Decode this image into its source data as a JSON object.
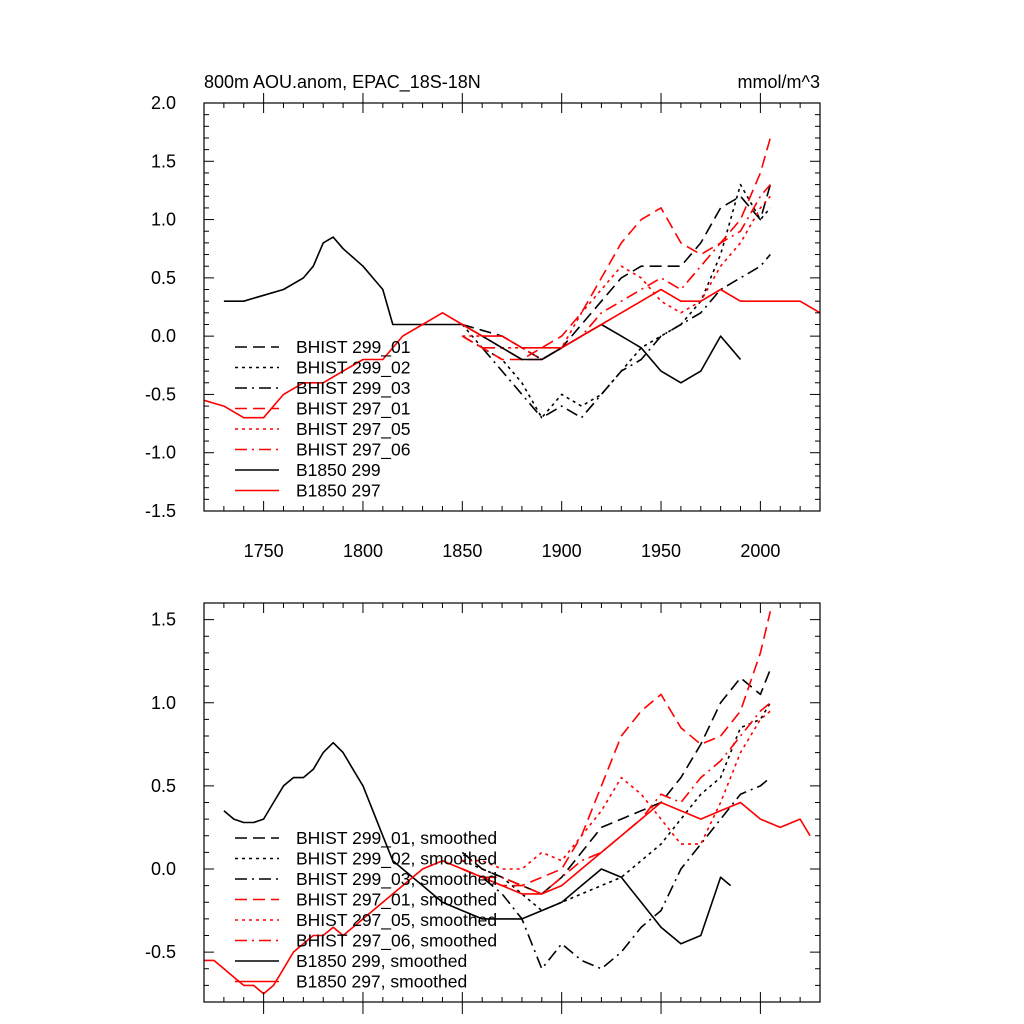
{
  "chart_data": [
    {
      "type": "line",
      "title": "800m AOU.anom, EPAC_18S-18N",
      "units": "mmol/m^3",
      "xlim": [
        1720,
        2030
      ],
      "ylim": [
        -1.5,
        2.0
      ],
      "xticks": [
        1750,
        1800,
        1850,
        1900,
        1950,
        2000
      ],
      "xtick_labels": [
        "1750",
        "1800",
        "1850",
        "1900",
        "1950",
        "2000"
      ],
      "yticks": [
        -1.5,
        -1.0,
        -0.5,
        0.0,
        0.5,
        1.0,
        1.5,
        2.0
      ],
      "ytick_labels": [
        "-1.5",
        "-1.0",
        "-0.5",
        "0.0",
        "0.5",
        "1.0",
        "1.5",
        "2.0"
      ],
      "legend_position": "lower-left",
      "series": [
        {
          "name": "BHIST 299_01",
          "color": "#000000",
          "dash": "dash",
          "x": [
            1850,
            1860,
            1870,
            1880,
            1890,
            1900,
            1910,
            1920,
            1930,
            1940,
            1950,
            1960,
            1970,
            1980,
            1990,
            2000,
            2005
          ],
          "y": [
            0.1,
            0.05,
            0.0,
            -0.1,
            -0.2,
            -0.1,
            0.1,
            0.3,
            0.5,
            0.6,
            0.6,
            0.6,
            0.8,
            1.1,
            1.2,
            1.0,
            1.3
          ]
        },
        {
          "name": "BHIST 299_02",
          "color": "#000000",
          "dash": "dot",
          "x": [
            1850,
            1860,
            1870,
            1880,
            1890,
            1900,
            1910,
            1920,
            1930,
            1940,
            1950,
            1960,
            1970,
            1980,
            1990,
            2000,
            2005
          ],
          "y": [
            0.1,
            -0.1,
            -0.2,
            -0.4,
            -0.7,
            -0.5,
            -0.6,
            -0.5,
            -0.3,
            -0.1,
            0.0,
            0.1,
            0.3,
            0.7,
            1.3,
            1.0,
            1.1
          ]
        },
        {
          "name": "BHIST 299_03",
          "color": "#000000",
          "dash": "dashdot",
          "x": [
            1850,
            1860,
            1870,
            1880,
            1890,
            1900,
            1910,
            1920,
            1930,
            1940,
            1950,
            1960,
            1970,
            1980,
            1990,
            2000,
            2005
          ],
          "y": [
            0.0,
            -0.1,
            -0.3,
            -0.5,
            -0.7,
            -0.6,
            -0.7,
            -0.5,
            -0.3,
            -0.2,
            0.0,
            0.1,
            0.2,
            0.4,
            0.5,
            0.6,
            0.7
          ]
        },
        {
          "name": "BHIST 297_01",
          "color": "#ff0000",
          "dash": "dash",
          "x": [
            1850,
            1860,
            1870,
            1880,
            1890,
            1900,
            1910,
            1920,
            1930,
            1940,
            1950,
            1960,
            1970,
            1980,
            1990,
            2000,
            2005
          ],
          "y": [
            0.0,
            -0.1,
            -0.2,
            -0.2,
            -0.1,
            0.0,
            0.2,
            0.5,
            0.8,
            1.0,
            1.1,
            0.8,
            0.7,
            0.8,
            1.0,
            1.4,
            1.7
          ]
        },
        {
          "name": "BHIST 297_05",
          "color": "#ff0000",
          "dash": "dot",
          "x": [
            1850,
            1860,
            1870,
            1880,
            1890,
            1900,
            1910,
            1920,
            1930,
            1940,
            1950,
            1960,
            1970,
            1980,
            1990,
            2000,
            2005
          ],
          "y": [
            0.0,
            0.0,
            -0.1,
            -0.1,
            -0.2,
            -0.1,
            0.2,
            0.4,
            0.6,
            0.5,
            0.3,
            0.2,
            0.3,
            0.6,
            0.8,
            1.1,
            1.2
          ]
        },
        {
          "name": "BHIST 297_06",
          "color": "#ff0000",
          "dash": "dashdot",
          "x": [
            1850,
            1860,
            1870,
            1880,
            1890,
            1900,
            1910,
            1920,
            1930,
            1940,
            1950,
            1960,
            1970,
            1980,
            1990,
            2000,
            2005
          ],
          "y": [
            0.0,
            -0.1,
            -0.1,
            -0.2,
            -0.2,
            -0.1,
            0.0,
            0.2,
            0.3,
            0.4,
            0.5,
            0.4,
            0.6,
            0.8,
            0.9,
            1.2,
            1.3
          ]
        },
        {
          "name": "B1850 299",
          "color": "#000000",
          "dash": "solid",
          "x": [
            1730,
            1740,
            1750,
            1760,
            1770,
            1775,
            1780,
            1785,
            1790,
            1800,
            1805,
            1810,
            1815,
            1820,
            1830,
            1840,
            1850,
            1860,
            1870,
            1880,
            1890,
            1900,
            1910,
            1920,
            1930,
            1940,
            1950,
            1960,
            1970,
            1980,
            1985,
            1990
          ],
          "y": [
            0.3,
            0.3,
            0.35,
            0.4,
            0.5,
            0.6,
            0.8,
            0.85,
            0.75,
            0.6,
            0.5,
            0.4,
            0.1,
            0.1,
            0.1,
            0.1,
            0.1,
            0.0,
            -0.1,
            -0.2,
            -0.2,
            -0.1,
            0.0,
            0.1,
            0.0,
            -0.1,
            -0.3,
            -0.4,
            -0.3,
            0.0,
            -0.1,
            -0.2
          ]
        },
        {
          "name": "B1850 297",
          "color": "#ff0000",
          "dash": "solid",
          "x": [
            1720,
            1730,
            1740,
            1750,
            1760,
            1770,
            1780,
            1790,
            1800,
            1810,
            1820,
            1830,
            1840,
            1850,
            1860,
            1870,
            1880,
            1890,
            1900,
            1910,
            1920,
            1930,
            1940,
            1950,
            1960,
            1970,
            1980,
            1990,
            2000,
            2010,
            2020,
            2030
          ],
          "y": [
            -0.55,
            -0.6,
            -0.7,
            -0.7,
            -0.5,
            -0.4,
            -0.4,
            -0.3,
            -0.2,
            -0.2,
            0.0,
            0.1,
            0.2,
            0.1,
            0.0,
            0.0,
            -0.1,
            -0.1,
            -0.1,
            0.0,
            0.1,
            0.2,
            0.3,
            0.4,
            0.3,
            0.3,
            0.4,
            0.3,
            0.3,
            0.3,
            0.3,
            0.2
          ]
        }
      ]
    },
    {
      "type": "line",
      "xlim": [
        1720,
        2030
      ],
      "ylim": [
        -0.8,
        1.6
      ],
      "yticks": [
        -0.5,
        0.0,
        0.5,
        1.0,
        1.5
      ],
      "ytick_labels": [
        "-0.5",
        "0.0",
        "0.5",
        "1.0",
        "1.5"
      ],
      "legend_position": "lower-left",
      "series": [
        {
          "name": "BHIST 299_01, smoothed",
          "color": "#000000",
          "dash": "dash",
          "x": [
            1850,
            1860,
            1870,
            1880,
            1890,
            1900,
            1910,
            1920,
            1930,
            1940,
            1950,
            1960,
            1970,
            1980,
            1990,
            2000,
            2005
          ],
          "y": [
            0.1,
            0.0,
            -0.05,
            -0.1,
            -0.15,
            -0.05,
            0.1,
            0.25,
            0.3,
            0.35,
            0.4,
            0.55,
            0.75,
            1.0,
            1.15,
            1.05,
            1.2
          ]
        },
        {
          "name": "BHIST 299_02, smoothed",
          "color": "#000000",
          "dash": "dot",
          "x": [
            1850,
            1860,
            1870,
            1880,
            1890,
            1900,
            1910,
            1920,
            1930,
            1940,
            1950,
            1960,
            1970,
            1980,
            1990,
            2000,
            2005
          ],
          "y": [
            0.05,
            0.0,
            -0.05,
            -0.15,
            -0.25,
            -0.2,
            -0.15,
            -0.1,
            -0.05,
            0.05,
            0.15,
            0.3,
            0.45,
            0.55,
            0.85,
            0.9,
            1.0
          ]
        },
        {
          "name": "BHIST 299_03, smoothed",
          "color": "#000000",
          "dash": "dashdot",
          "x": [
            1850,
            1860,
            1870,
            1880,
            1890,
            1900,
            1910,
            1920,
            1930,
            1940,
            1950,
            1960,
            1970,
            1980,
            1990,
            2000,
            2005
          ],
          "y": [
            0.0,
            -0.05,
            -0.15,
            -0.3,
            -0.6,
            -0.45,
            -0.55,
            -0.6,
            -0.5,
            -0.35,
            -0.25,
            0.0,
            0.15,
            0.3,
            0.45,
            0.5,
            0.55
          ]
        },
        {
          "name": "BHIST 297_01, smoothed",
          "color": "#ff0000",
          "dash": "dash",
          "x": [
            1850,
            1860,
            1870,
            1880,
            1890,
            1900,
            1910,
            1920,
            1930,
            1940,
            1950,
            1960,
            1970,
            1980,
            1990,
            2000,
            2005
          ],
          "y": [
            0.0,
            -0.05,
            -0.1,
            -0.1,
            -0.05,
            0.0,
            0.2,
            0.5,
            0.8,
            0.95,
            1.05,
            0.85,
            0.75,
            0.8,
            0.95,
            1.3,
            1.55
          ]
        },
        {
          "name": "BHIST 297_05, smoothed",
          "color": "#ff0000",
          "dash": "dot",
          "x": [
            1850,
            1860,
            1870,
            1880,
            1890,
            1900,
            1910,
            1920,
            1930,
            1940,
            1950,
            1960,
            1970,
            1980,
            1990,
            2000,
            2005
          ],
          "y": [
            0.05,
            0.05,
            0.0,
            0.0,
            0.1,
            0.05,
            0.2,
            0.35,
            0.55,
            0.45,
            0.3,
            0.15,
            0.15,
            0.4,
            0.7,
            0.9,
            0.95
          ]
        },
        {
          "name": "BHIST 297_06, smoothed",
          "color": "#ff0000",
          "dash": "dashdot",
          "x": [
            1850,
            1860,
            1870,
            1880,
            1890,
            1900,
            1910,
            1920,
            1930,
            1940,
            1950,
            1960,
            1970,
            1980,
            1990,
            2000,
            2005
          ],
          "y": [
            0.0,
            -0.05,
            -0.05,
            -0.1,
            -0.15,
            -0.05,
            0.05,
            0.1,
            0.2,
            0.3,
            0.45,
            0.4,
            0.55,
            0.65,
            0.8,
            0.95,
            1.0
          ]
        },
        {
          "name": "B1850 299, smoothed",
          "color": "#000000",
          "dash": "solid",
          "x": [
            1730,
            1735,
            1740,
            1745,
            1750,
            1755,
            1760,
            1765,
            1770,
            1775,
            1780,
            1785,
            1790,
            1795,
            1800,
            1805,
            1810,
            1815,
            1820,
            1830,
            1840,
            1850,
            1860,
            1870,
            1880,
            1890,
            1900,
            1910,
            1920,
            1930,
            1940,
            1950,
            1960,
            1970,
            1980,
            1985
          ],
          "y": [
            0.35,
            0.3,
            0.28,
            0.28,
            0.3,
            0.4,
            0.5,
            0.55,
            0.55,
            0.6,
            0.7,
            0.76,
            0.7,
            0.6,
            0.5,
            0.35,
            0.2,
            0.05,
            0.0,
            -0.1,
            -0.2,
            -0.25,
            -0.3,
            -0.3,
            -0.3,
            -0.25,
            -0.2,
            -0.1,
            0.0,
            -0.05,
            -0.2,
            -0.35,
            -0.45,
            -0.4,
            -0.05,
            -0.1
          ]
        },
        {
          "name": "B1850 297, smoothed",
          "color": "#ff0000",
          "dash": "solid",
          "x": [
            1720,
            1725,
            1730,
            1735,
            1740,
            1745,
            1750,
            1755,
            1760,
            1765,
            1770,
            1775,
            1780,
            1785,
            1790,
            1800,
            1810,
            1820,
            1830,
            1840,
            1850,
            1860,
            1870,
            1880,
            1890,
            1900,
            1910,
            1920,
            1930,
            1940,
            1950,
            1960,
            1970,
            1980,
            1990,
            2000,
            2010,
            2020,
            2025
          ],
          "y": [
            -0.55,
            -0.55,
            -0.6,
            -0.65,
            -0.7,
            -0.7,
            -0.75,
            -0.7,
            -0.6,
            -0.5,
            -0.45,
            -0.4,
            -0.4,
            -0.35,
            -0.4,
            -0.3,
            -0.2,
            -0.1,
            0.0,
            0.05,
            0.0,
            -0.05,
            -0.1,
            -0.15,
            -0.15,
            -0.1,
            0.0,
            0.1,
            0.2,
            0.3,
            0.4,
            0.35,
            0.3,
            0.35,
            0.4,
            0.3,
            0.25,
            0.3,
            0.2
          ]
        }
      ]
    }
  ]
}
